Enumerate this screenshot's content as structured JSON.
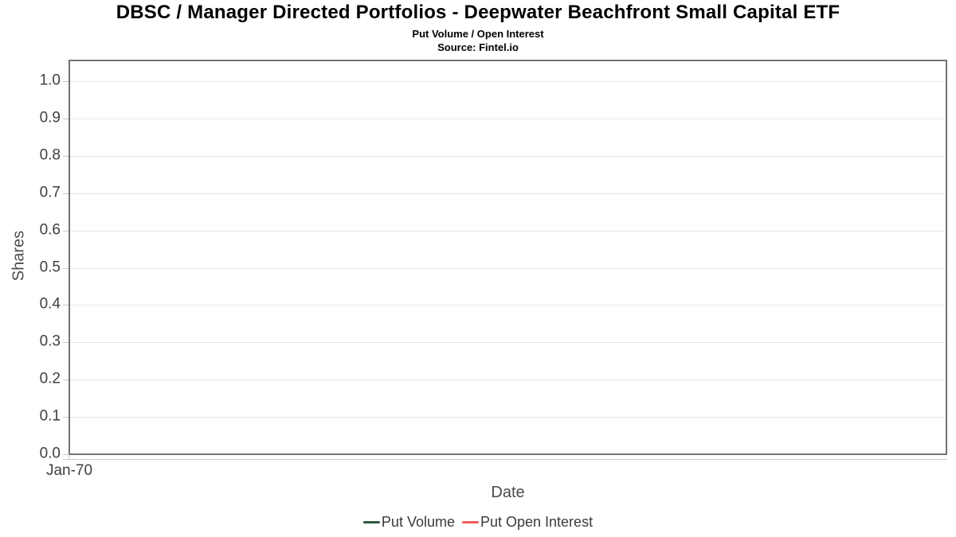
{
  "header": {
    "title": "DBSC / Manager Directed Portfolios - Deepwater Beachfront Small Capital ETF",
    "subtitle": "Put Volume / Open Interest",
    "source": "Source: Fintel.io"
  },
  "chart_data": {
    "type": "line",
    "title": "DBSC / Manager Directed Portfolios - Deepwater Beachfront Small Capital ETF",
    "subtitle": "Put Volume / Open Interest",
    "source": "Source: Fintel.io",
    "xlabel": "Date",
    "ylabel": "Shares",
    "ylim": [
      0.0,
      1.0
    ],
    "ytick_step": 0.1,
    "yticks": [
      "1.0",
      "0.9",
      "0.8",
      "0.7",
      "0.6",
      "0.5",
      "0.4",
      "0.3",
      "0.2",
      "0.1",
      "0.0"
    ],
    "xticks": [
      "Jan-70"
    ],
    "grid": true,
    "legend_position": "bottom",
    "plot_is_empty": true,
    "series": [
      {
        "name": "Put Volume",
        "color": "#2d5a3e",
        "x": [],
        "values": []
      },
      {
        "name": "Put Open Interest",
        "color": "#f05b5b",
        "x": [],
        "values": []
      }
    ]
  },
  "colors": {
    "background": "#ffffff",
    "plot_border": "#737373",
    "gridline": "#e6e6e6",
    "tick": "#c9c9c9",
    "tick_text": "#3f3f3f",
    "axis_title_text": "#4a4a4a",
    "legend_text": "#3a3a3a",
    "title_text": "#000000"
  }
}
